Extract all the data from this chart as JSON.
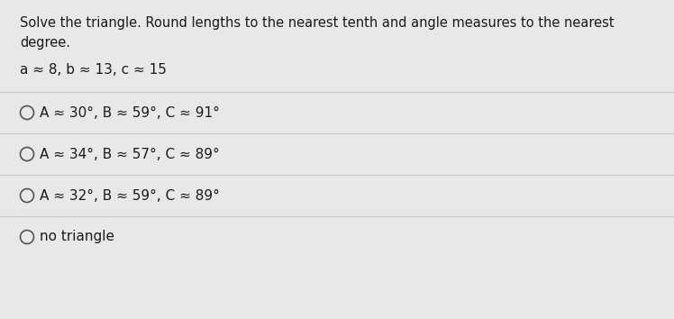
{
  "bg_color": "#e8e8e8",
  "card_color": "#efefef",
  "question_text_line1": "Solve the triangle. Round lengths to the nearest tenth and angle measures to the nearest",
  "question_text_line2": "degree.",
  "given": "a ≈ 8, b ≈ 13, c ≈ 15",
  "options": [
    "A ≈ 30°, B ≈ 59°, C ≈ 91°",
    "A ≈ 34°, B ≈ 57°, C ≈ 89°",
    "A ≈ 32°, B ≈ 59°, C ≈ 89°",
    "no triangle"
  ],
  "divider_color": "#c8c8c8",
  "text_color": "#1a1a1a",
  "circle_color": "#555555",
  "font_size_question": 10.5,
  "font_size_given": 11,
  "font_size_options": 11
}
